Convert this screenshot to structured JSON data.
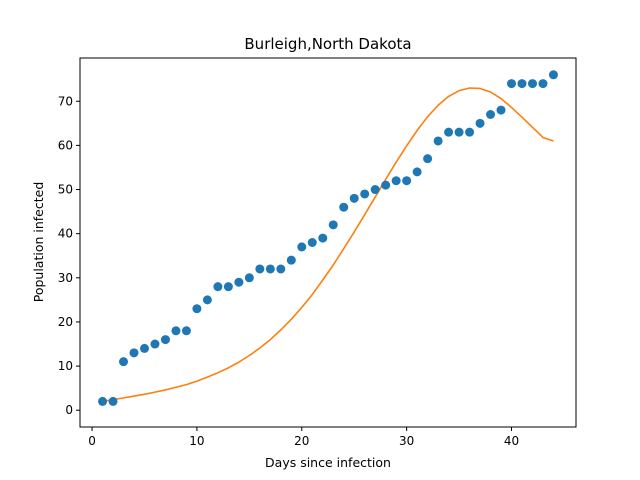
{
  "chart_data": {
    "type": "scatter",
    "title": "Burleigh,North Dakota",
    "xlabel": "Days since infection",
    "ylabel": "Population infected",
    "xlim": [
      -1.15,
      46.15
    ],
    "ylim": [
      -3.8,
      79.8
    ],
    "xticks": [
      0,
      10,
      20,
      30,
      40
    ],
    "yticks": [
      0,
      10,
      20,
      30,
      40,
      50,
      60,
      70
    ],
    "grid": false,
    "series": [
      {
        "kind": "scatter",
        "color": "#1f77b4",
        "x": [
          1,
          2,
          3,
          4,
          5,
          6,
          7,
          8,
          9,
          10,
          11,
          12,
          13,
          14,
          15,
          16,
          17,
          18,
          19,
          20,
          21,
          22,
          23,
          24,
          25,
          26,
          27,
          28,
          29,
          30,
          31,
          32,
          33,
          34,
          35,
          36,
          37,
          38,
          39,
          40,
          41,
          42,
          43,
          44
        ],
        "y": [
          2,
          2,
          11,
          13,
          14,
          15,
          16,
          18,
          18,
          23,
          25,
          28,
          28,
          29,
          30,
          32,
          32,
          32,
          34,
          37,
          38,
          39,
          42,
          46,
          48,
          49,
          50,
          51,
          52,
          52,
          54,
          57,
          61,
          63,
          63,
          63,
          65,
          67,
          68,
          74,
          74,
          74,
          74,
          76
        ]
      },
      {
        "kind": "line",
        "color": "#ff7f0e",
        "x": [
          1,
          2,
          3,
          4,
          5,
          6,
          7,
          8,
          9,
          10,
          11,
          12,
          13,
          14,
          15,
          16,
          17,
          18,
          19,
          20,
          21,
          22,
          23,
          24,
          25,
          26,
          27,
          28,
          29,
          30,
          31,
          32,
          33,
          34,
          35,
          36,
          37,
          38,
          39,
          40,
          41,
          42,
          43,
          44
        ],
        "y": [
          2.0,
          2.4,
          2.8,
          3.2,
          3.6,
          4.1,
          4.6,
          5.2,
          5.8,
          6.6,
          7.5,
          8.5,
          9.6,
          10.9,
          12.4,
          14.1,
          16.0,
          18.2,
          20.6,
          23.3,
          26.2,
          29.5,
          32.9,
          36.6,
          40.4,
          44.3,
          48.3,
          52.3,
          56.2,
          59.9,
          63.4,
          66.5,
          69.1,
          71.1,
          72.4,
          73.0,
          72.9,
          72.1,
          70.6,
          68.6,
          66.4,
          64.1,
          61.8,
          61.0
        ]
      }
    ]
  }
}
